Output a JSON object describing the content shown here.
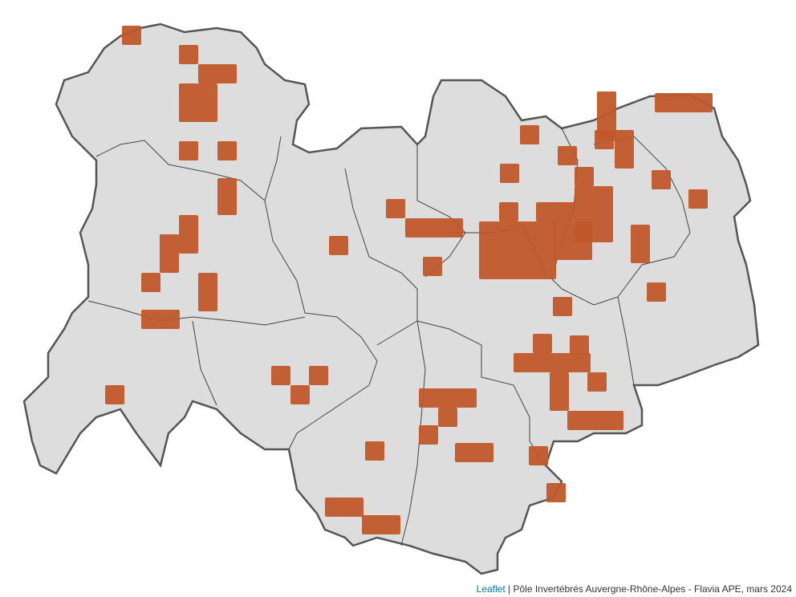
{
  "map": {
    "region_fill": "#dddddd",
    "region_border": "#555555",
    "cell_color": "#c1572a"
  },
  "attribution": {
    "leaflet_link": "Leaflet",
    "separator": " | ",
    "text": "Pôle Invertébrés Auvergne-Rhône-Alpes - Flavia APE, mars 2024",
    "link_color": "#0078a8"
  }
}
